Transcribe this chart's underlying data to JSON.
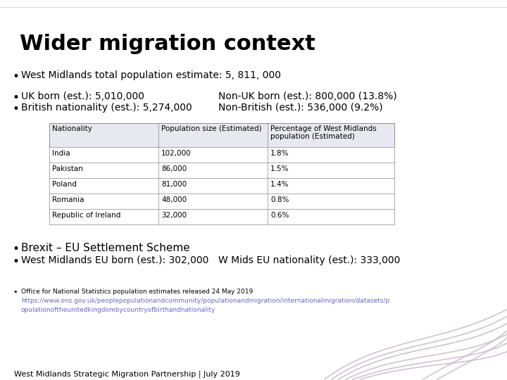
{
  "title": "Wider migration context",
  "bullet1": "West Midlands total population estimate: 5, 811, 000",
  "bullet2_left": "UK born (est.): 5,010,000",
  "bullet2_right": "Non-UK born (est.): 800,000 (13.8%)",
  "bullet3_left": "British nationality (est.): 5,274,000",
  "bullet3_right": "Non-British (est.): 536,000 (9.2%)",
  "table_headers": [
    "Nationality",
    "Population size (Estimated)",
    "Percentage of West Midlands\npopulation (Estimated)"
  ],
  "table_rows": [
    [
      "India",
      "102,000",
      "1.8%"
    ],
    [
      "Pakistan",
      "86,000",
      "1.5%"
    ],
    [
      "Poland",
      "81,000",
      "1.4%"
    ],
    [
      "Romania",
      "48,000",
      "0.8%"
    ],
    [
      "Republic of Ireland",
      "32,000",
      "0.6%"
    ]
  ],
  "bullet4": "Brexit – EU Settlement Scheme",
  "bullet5_left": "West Midlands EU born (est.): 302,000",
  "bullet5_right": "W Mids EU nationality (est.): 333,000",
  "footnote_line1": "Office for National Statistics population estimates released 24 May 2019",
  "footnote_line2": "https://www.ons.gov.uk/peoplepopulationandcommunity/populationandmigration/internationalmigration/datasets/p",
  "footnote_line3": "opulationoftheunitedkingdombycountryofbirthandnationality",
  "footer": "West Midlands Strategic Migration Partnership | July 2019",
  "bg_color": "#ffffff",
  "title_color": "#000000",
  "text_color": "#000000",
  "table_header_bg": "#e8e8f0",
  "link_color": "#6666cc",
  "swirl_color": "#c9b8cc",
  "title_fontsize": 22,
  "body_fontsize": 10,
  "small_fontsize": 7.5,
  "footer_fontsize": 8
}
